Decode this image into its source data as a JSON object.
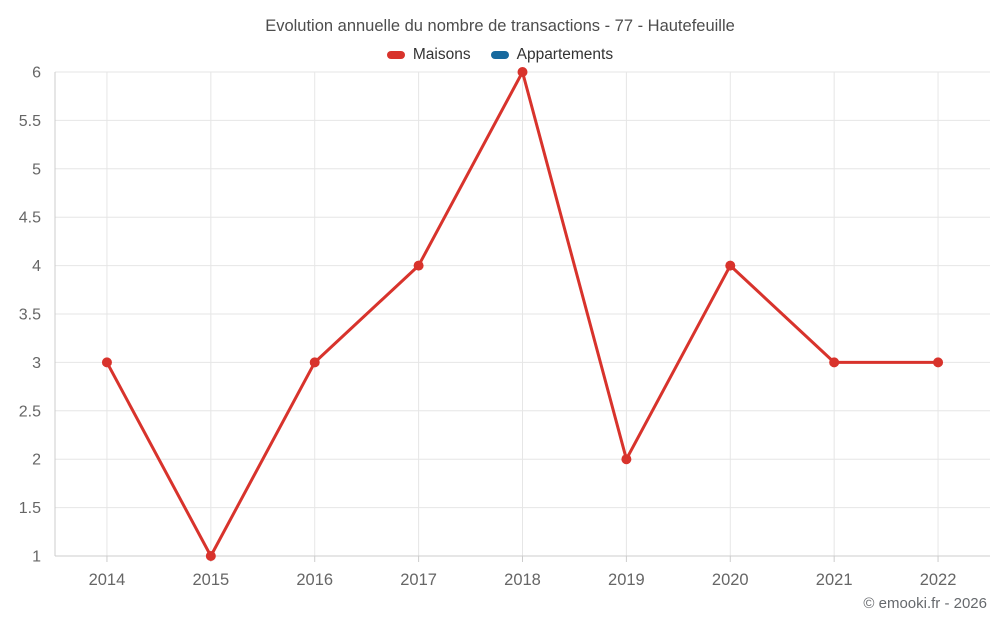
{
  "chart": {
    "credits": "© emooki.fr - 2026"
  },
  "chart_data": {
    "type": "line",
    "title": "Evolution annuelle du nombre de transactions - 77 - Hautefeuille",
    "categories": [
      "2014",
      "2015",
      "2016",
      "2017",
      "2018",
      "2019",
      "2020",
      "2021",
      "2022"
    ],
    "series": [
      {
        "name": "Maisons",
        "color": "#d8332c",
        "values": [
          3,
          1,
          3,
          4,
          6,
          2,
          4,
          3,
          3
        ]
      },
      {
        "name": "Appartements",
        "color": "#17699e",
        "values": []
      }
    ],
    "xlabel": "",
    "ylabel": "",
    "ylim": [
      1,
      6
    ],
    "ytick_labels": [
      "1",
      "1.5",
      "2",
      "2.5",
      "3",
      "3.5",
      "4",
      "4.5",
      "5",
      "5.5",
      "6"
    ],
    "grid": true,
    "legend_position": "top",
    "marker_radius": 5,
    "line_width": 3,
    "colors": {
      "grid": "#e6e6e6",
      "axis": "#cccccc",
      "axis_label": "#666666",
      "title": "#4d4d4d",
      "legend_text": "#333333"
    }
  }
}
